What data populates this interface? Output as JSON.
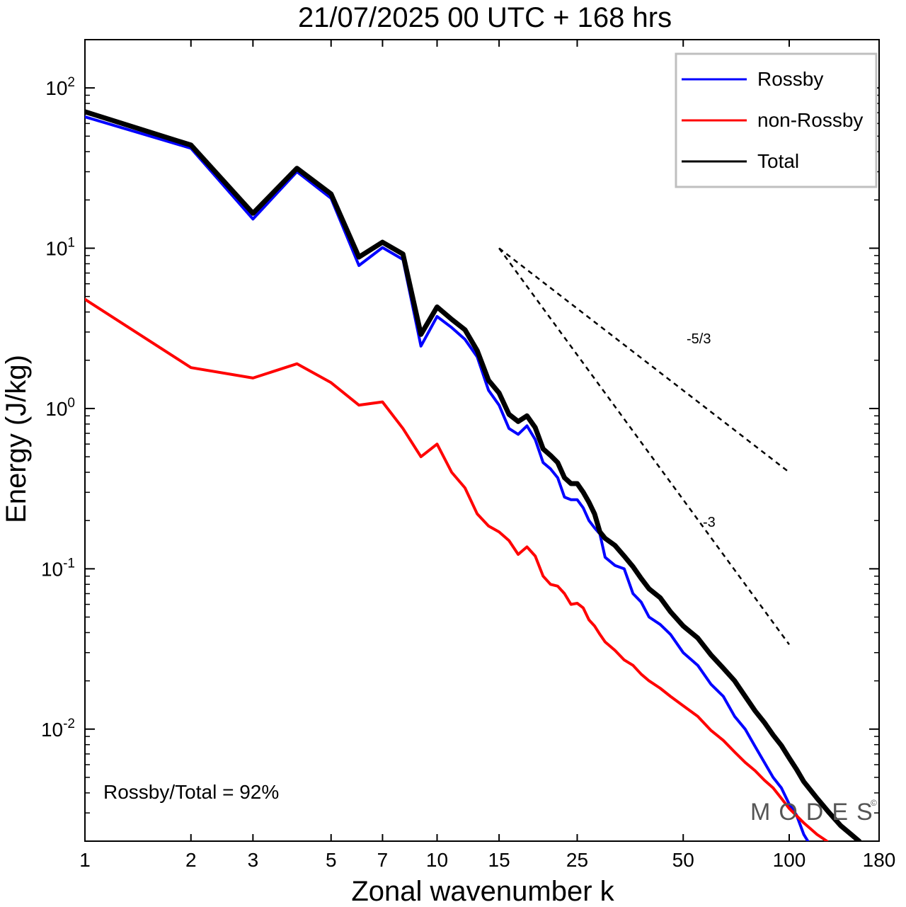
{
  "chart_data": {
    "type": "line",
    "title": "21/07/2025  00 UTC  + 168 hrs",
    "xlabel": "Zonal wavenumber k",
    "ylabel": "Energy (J/kg)",
    "xscale": "log",
    "yscale": "log",
    "xlim": [
      1,
      180
    ],
    "ylim": [
      0.002,
      200
    ],
    "x_ticks": [
      1,
      2,
      3,
      5,
      7,
      10,
      15,
      25,
      50,
      100,
      180
    ],
    "x_tick_labels": [
      "1",
      "2",
      "3",
      "5",
      "7",
      "10",
      "15",
      "25",
      "50",
      "100",
      "180"
    ],
    "y_ticks": [
      {
        "value": 100,
        "base": "10",
        "exp": "2"
      },
      {
        "value": 10,
        "base": "10",
        "exp": "1"
      },
      {
        "value": 1,
        "base": "10",
        "exp": "0"
      },
      {
        "value": 0.1,
        "base": "10",
        "exp": "-1"
      },
      {
        "value": 0.01,
        "base": "10",
        "exp": "-2"
      }
    ],
    "legend_position": "top-right",
    "series": [
      {
        "name": "Rossby",
        "color": "#0000ff",
        "width": 4,
        "points": [
          [
            1,
            66
          ],
          [
            2,
            42
          ],
          [
            3,
            15.2
          ],
          [
            4,
            30
          ],
          [
            5,
            20.5
          ],
          [
            6,
            7.8
          ],
          [
            7,
            10.1
          ],
          [
            8,
            8.5
          ],
          [
            9,
            2.45
          ],
          [
            10,
            3.75
          ],
          [
            11,
            3.2
          ],
          [
            12,
            2.7
          ],
          [
            13,
            2.1
          ],
          [
            14,
            1.3
          ],
          [
            15,
            1.05
          ],
          [
            16,
            0.75
          ],
          [
            17,
            0.69
          ],
          [
            18,
            0.78
          ],
          [
            19,
            0.64
          ],
          [
            20,
            0.46
          ],
          [
            21,
            0.42
          ],
          [
            22,
            0.37
          ],
          [
            23,
            0.28
          ],
          [
            24,
            0.27
          ],
          [
            25,
            0.27
          ],
          [
            26,
            0.24
          ],
          [
            27,
            0.2
          ],
          [
            28,
            0.18
          ],
          [
            29,
            0.165
          ],
          [
            30,
            0.118
          ],
          [
            32,
            0.105
          ],
          [
            34,
            0.1
          ],
          [
            36,
            0.07
          ],
          [
            38,
            0.062
          ],
          [
            40,
            0.05
          ],
          [
            43,
            0.045
          ],
          [
            46,
            0.039
          ],
          [
            50,
            0.03
          ],
          [
            55,
            0.025
          ],
          [
            60,
            0.019
          ],
          [
            65,
            0.016
          ],
          [
            70,
            0.012
          ],
          [
            75,
            0.01
          ],
          [
            80,
            0.0078
          ],
          [
            85,
            0.0062
          ],
          [
            90,
            0.005
          ],
          [
            95,
            0.0043
          ],
          [
            100,
            0.0034
          ],
          [
            105,
            0.0029
          ],
          [
            110,
            0.0022
          ],
          [
            113,
            0.002
          ]
        ]
      },
      {
        "name": "non-Rossby",
        "color": "#ff0000",
        "width": 4,
        "points": [
          [
            1,
            4.8
          ],
          [
            2,
            1.8
          ],
          [
            3,
            1.55
          ],
          [
            4,
            1.9
          ],
          [
            5,
            1.45
          ],
          [
            6,
            1.05
          ],
          [
            7,
            1.1
          ],
          [
            8,
            0.75
          ],
          [
            9,
            0.5
          ],
          [
            10,
            0.6
          ],
          [
            11,
            0.4
          ],
          [
            12,
            0.32
          ],
          [
            13,
            0.22
          ],
          [
            14,
            0.185
          ],
          [
            15,
            0.17
          ],
          [
            16,
            0.15
          ],
          [
            17,
            0.123
          ],
          [
            18,
            0.137
          ],
          [
            19,
            0.12
          ],
          [
            20,
            0.09
          ],
          [
            21,
            0.08
          ],
          [
            22,
            0.078
          ],
          [
            23,
            0.07
          ],
          [
            24,
            0.06
          ],
          [
            25,
            0.061
          ],
          [
            26,
            0.057
          ],
          [
            27,
            0.048
          ],
          [
            28,
            0.044
          ],
          [
            29,
            0.039
          ],
          [
            30,
            0.035
          ],
          [
            32,
            0.031
          ],
          [
            34,
            0.027
          ],
          [
            36,
            0.025
          ],
          [
            38,
            0.022
          ],
          [
            40,
            0.02
          ],
          [
            43,
            0.018
          ],
          [
            46,
            0.016
          ],
          [
            50,
            0.014
          ],
          [
            55,
            0.012
          ],
          [
            60,
            0.0098
          ],
          [
            65,
            0.0085
          ],
          [
            70,
            0.0072
          ],
          [
            75,
            0.0062
          ],
          [
            80,
            0.0055
          ],
          [
            85,
            0.0048
          ],
          [
            90,
            0.0043
          ],
          [
            95,
            0.0037
          ],
          [
            100,
            0.0032
          ],
          [
            110,
            0.0026
          ],
          [
            120,
            0.0022
          ],
          [
            128,
            0.002
          ]
        ]
      },
      {
        "name": "Total",
        "color": "#000000",
        "width": 7,
        "points": [
          [
            1,
            71
          ],
          [
            2,
            44
          ],
          [
            3,
            16.5
          ],
          [
            4,
            31.5
          ],
          [
            5,
            21.8
          ],
          [
            6,
            8.8
          ],
          [
            7,
            10.9
          ],
          [
            8,
            9.2
          ],
          [
            9,
            2.9
          ],
          [
            10,
            4.3
          ],
          [
            11,
            3.6
          ],
          [
            12,
            3.1
          ],
          [
            13,
            2.3
          ],
          [
            14,
            1.5
          ],
          [
            15,
            1.25
          ],
          [
            16,
            0.92
          ],
          [
            17,
            0.83
          ],
          [
            18,
            0.9
          ],
          [
            19,
            0.76
          ],
          [
            20,
            0.56
          ],
          [
            21,
            0.51
          ],
          [
            22,
            0.46
          ],
          [
            23,
            0.37
          ],
          [
            24,
            0.34
          ],
          [
            25,
            0.34
          ],
          [
            26,
            0.3
          ],
          [
            27,
            0.26
          ],
          [
            28,
            0.22
          ],
          [
            29,
            0.17
          ],
          [
            30,
            0.155
          ],
          [
            32,
            0.14
          ],
          [
            34,
            0.12
          ],
          [
            36,
            0.103
          ],
          [
            38,
            0.087
          ],
          [
            40,
            0.075
          ],
          [
            43,
            0.066
          ],
          [
            46,
            0.054
          ],
          [
            50,
            0.044
          ],
          [
            55,
            0.037
          ],
          [
            60,
            0.029
          ],
          [
            65,
            0.024
          ],
          [
            70,
            0.02
          ],
          [
            75,
            0.016
          ],
          [
            80,
            0.013
          ],
          [
            85,
            0.011
          ],
          [
            90,
            0.0092
          ],
          [
            95,
            0.0079
          ],
          [
            100,
            0.0066
          ],
          [
            105,
            0.0056
          ],
          [
            110,
            0.0047
          ],
          [
            120,
            0.0037
          ],
          [
            130,
            0.003
          ],
          [
            140,
            0.0025
          ],
          [
            150,
            0.0022
          ],
          [
            158,
            0.002
          ]
        ]
      }
    ],
    "reference_slopes": [
      {
        "label": "-5/3",
        "x_start": 15,
        "x_end": 100,
        "y_start": 10,
        "y_end": 0.4
      },
      {
        "label": "-3",
        "x_start": 15,
        "x_end": 100,
        "y_start": 10,
        "y_end": 0.0337
      }
    ],
    "annotation": "Rossby/Total = 92%",
    "watermark": "MODES",
    "watermark_mark": "©"
  }
}
